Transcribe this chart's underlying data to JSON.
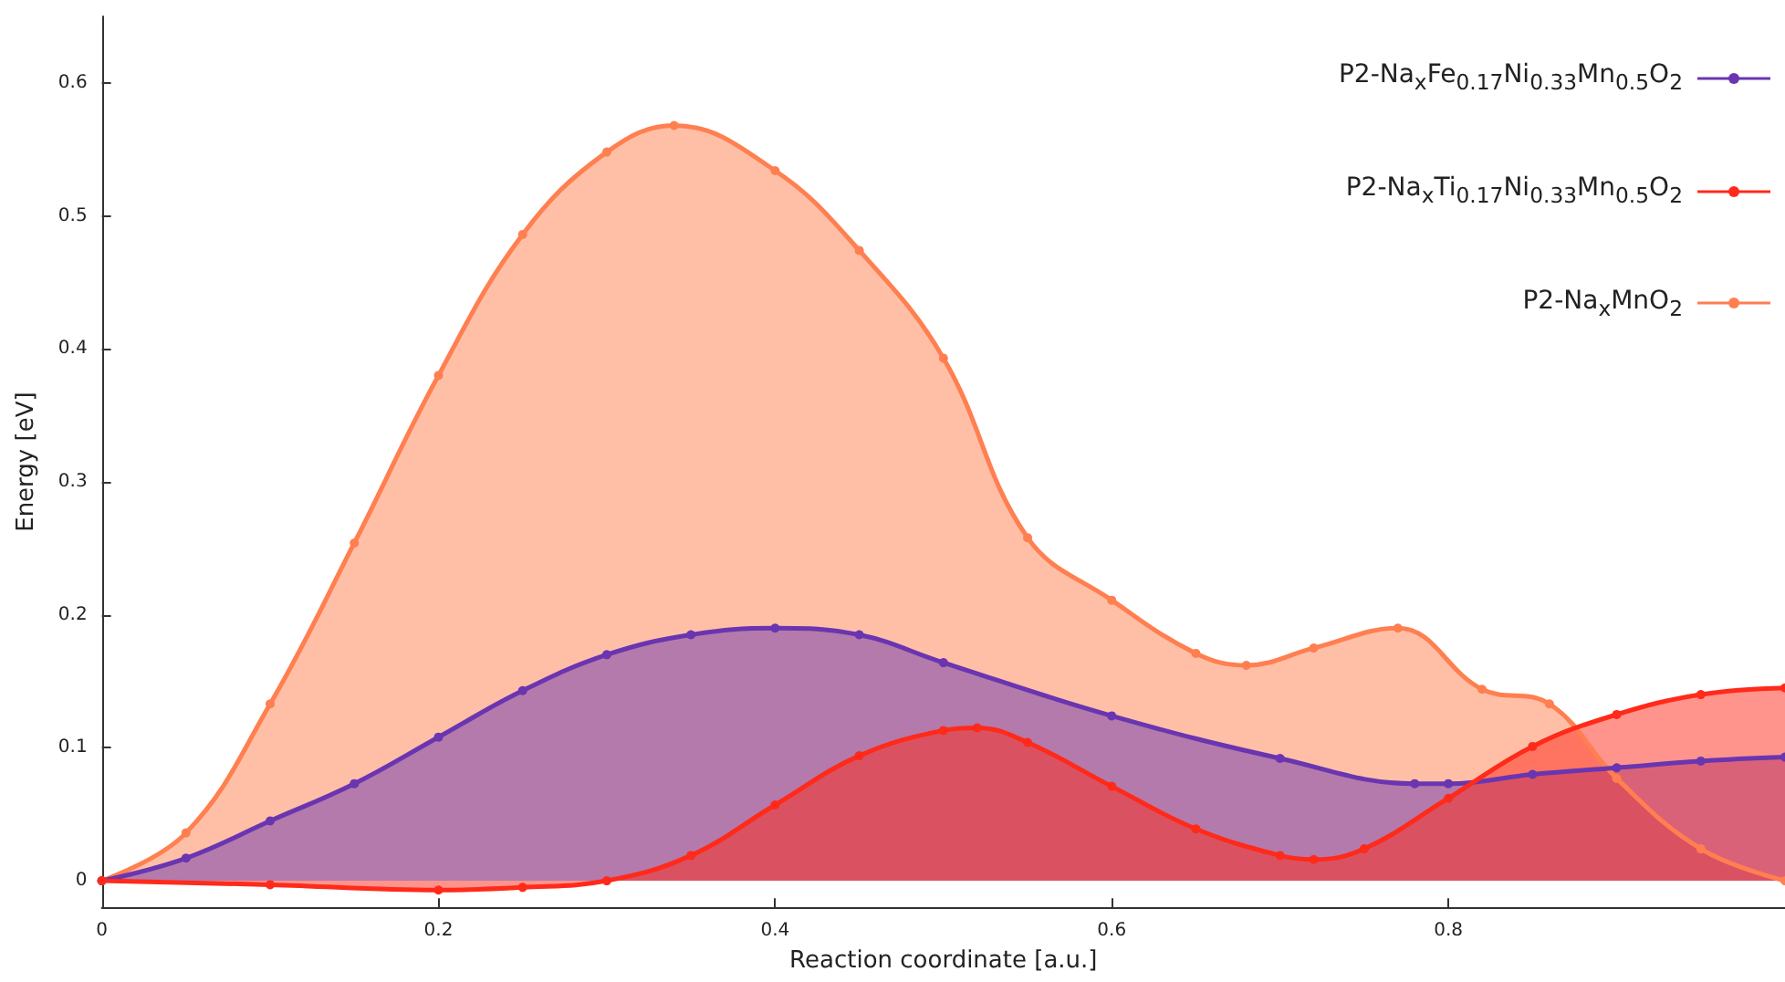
{
  "chart_data": {
    "type": "area",
    "xlabel": "Reaction coordinate [a.u.]",
    "ylabel": "Energy [eV]",
    "xlim": [
      0,
      1
    ],
    "xticks": [
      0,
      0.2,
      0.4,
      0.6,
      0.8
    ],
    "ylim": [
      -0.02,
      0.65
    ],
    "yticks": [
      0,
      0.1,
      0.2,
      0.3,
      0.4,
      0.5,
      0.6
    ],
    "grid": false,
    "legend": "top right",
    "marker": "circle",
    "line_style": "solid",
    "series": [
      {
        "name": "P2-Na$_{x}$MnO$_{2}$",
        "color": "#ff7f50",
        "x": [
          0,
          0.05,
          0.1,
          0.15,
          0.2,
          0.25,
          0.3,
          0.34,
          0.4,
          0.45,
          0.5,
          0.55,
          0.6,
          0.65,
          0.68,
          0.72,
          0.77,
          0.82,
          0.86,
          0.9,
          0.95,
          1
        ],
        "values": [
          0,
          0.036,
          0.133,
          0.254,
          0.38,
          0.486,
          0.548,
          0.568,
          0.534,
          0.474,
          0.393,
          0.258,
          0.211,
          0.171,
          0.162,
          0.175,
          0.19,
          0.144,
          0.133,
          0.077,
          0.024,
          0
        ]
      },
      {
        "name": "P2-Na$_{x}$Fe$_{0.17}$Ni$_{0.33}$Mn$_{0.5}$O$_{2}$",
        "color": "#6a35b0",
        "x": [
          0,
          0.05,
          0.1,
          0.15,
          0.2,
          0.25,
          0.3,
          0.35,
          0.4,
          0.45,
          0.5,
          0.6,
          0.7,
          0.78,
          0.8,
          0.85,
          0.9,
          0.95,
          1
        ],
        "values": [
          0,
          0.017,
          0.045,
          0.073,
          0.108,
          0.143,
          0.17,
          0.185,
          0.19,
          0.185,
          0.164,
          0.124,
          0.092,
          0.073,
          0.073,
          0.08,
          0.085,
          0.09,
          0.093
        ]
      },
      {
        "name": "P2-Na$_{x}$Ti$_{0.17}$Ni$_{0.33}$Mn$_{0.5}$O$_{2}$",
        "color": "#ff2a1a",
        "x": [
          0,
          0.1,
          0.2,
          0.25,
          0.3,
          0.35,
          0.4,
          0.45,
          0.5,
          0.52,
          0.55,
          0.6,
          0.65,
          0.7,
          0.72,
          0.75,
          0.8,
          0.85,
          0.9,
          0.95,
          1
        ],
        "values": [
          0,
          -0.003,
          -0.007,
          -0.005,
          0,
          0.019,
          0.057,
          0.094,
          0.113,
          0.115,
          0.104,
          0.071,
          0.039,
          0.019,
          0.016,
          0.024,
          0.062,
          0.101,
          0.125,
          0.14,
          0.145
        ]
      }
    ]
  }
}
